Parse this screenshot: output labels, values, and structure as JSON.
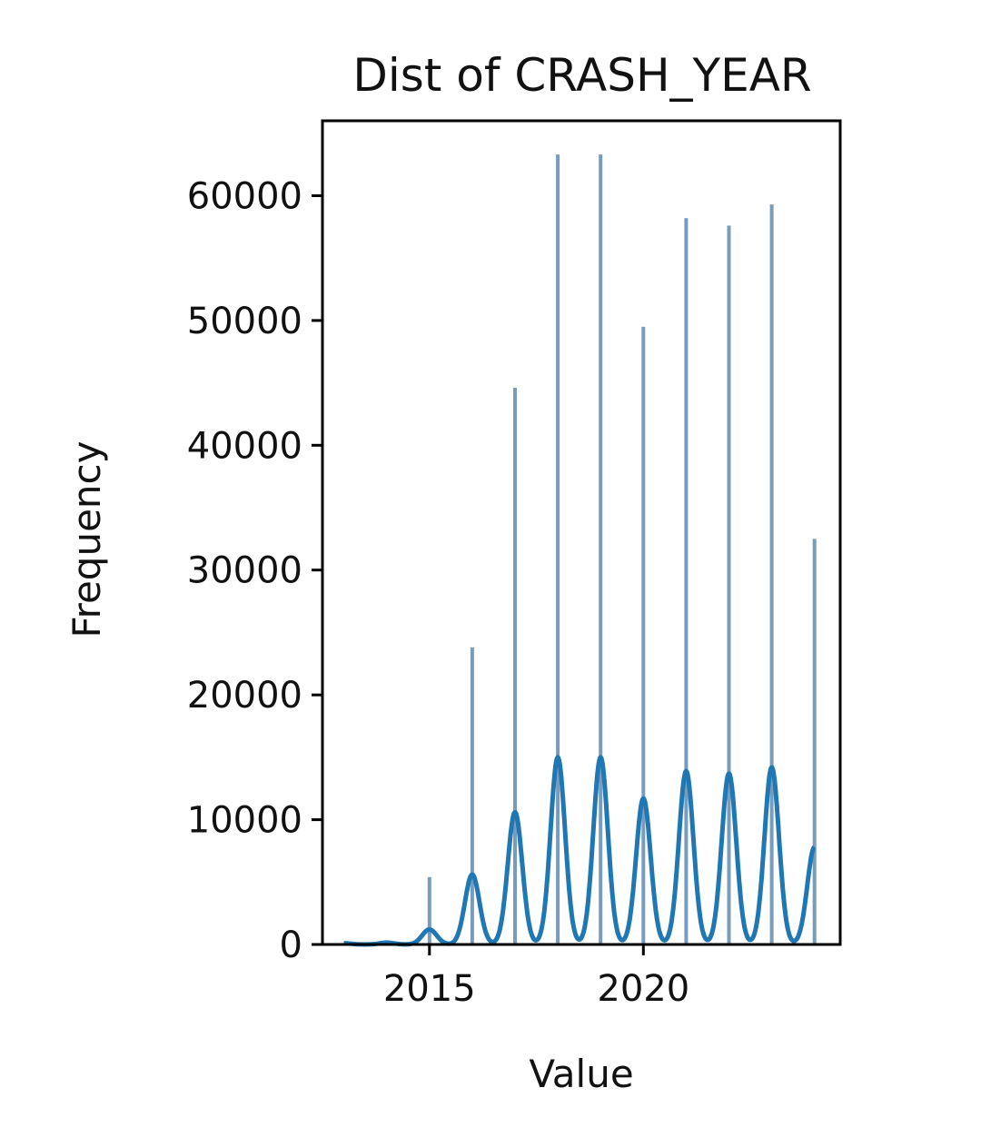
{
  "chart_data": {
    "type": "bar",
    "title": "Dist of CRASH_YEAR",
    "xlabel": "Value",
    "ylabel": "Frequency",
    "xlim": [
      2012.5,
      2024.6
    ],
    "ylim": [
      0,
      66000
    ],
    "x_ticks": [
      2015,
      2020
    ],
    "y_ticks": [
      0,
      10000,
      20000,
      30000,
      40000,
      50000,
      60000
    ],
    "grid": false,
    "legend": "none",
    "bar_color": "#5f8bb3",
    "kde_color": "#1f77b4",
    "series": [
      {
        "type": "histogram",
        "x": [
          2013,
          2014,
          2015,
          2016,
          2017,
          2018,
          2019,
          2020,
          2021,
          2022,
          2023,
          2024
        ],
        "values": [
          10,
          40,
          5400,
          23800,
          44600,
          63300,
          63300,
          49500,
          58200,
          57600,
          59300,
          32500
        ]
      },
      {
        "type": "kde",
        "x": [
          2013,
          2014,
          2015,
          2016,
          2017,
          2018,
          2019,
          2020,
          2021,
          2022,
          2023,
          2024
        ],
        "values": [
          100,
          150,
          1200,
          5600,
          10600,
          15000,
          15000,
          11700,
          13900,
          13700,
          14200,
          7800
        ]
      }
    ]
  }
}
